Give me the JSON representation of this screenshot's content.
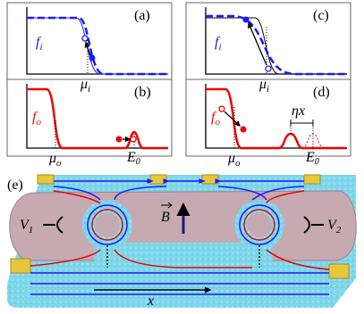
{
  "panel_a": {
    "label": "(a)",
    "function": {
      "symbol": "f",
      "subscript": "i"
    },
    "potential": {
      "symbol": "μ",
      "subscript": "i"
    }
  },
  "panel_b": {
    "label": "(b)",
    "function": {
      "symbol": "f",
      "subscript": "o"
    },
    "potential": {
      "symbol": "μ",
      "subscript": "o"
    },
    "energy": {
      "symbol": "E",
      "subscript": "0"
    }
  },
  "panel_c": {
    "label": "(c)",
    "function": {
      "symbol": "f",
      "subscript": "i"
    },
    "potential": {
      "symbol": "μ",
      "subscript": "i"
    }
  },
  "panel_d": {
    "label": "(d)",
    "function": {
      "symbol": "f",
      "subscript": "o"
    },
    "potential": {
      "symbol": "μ",
      "subscript": "o"
    },
    "energy": {
      "symbol": "E",
      "subscript": "0"
    },
    "shift": "ηx"
  },
  "panel_e": {
    "label": "(e)",
    "voltage_left": {
      "symbol": "V",
      "subscript": "1"
    },
    "voltage_right": {
      "symbol": "V",
      "subscript": "2"
    },
    "field": "B",
    "distance": "x"
  }
}
